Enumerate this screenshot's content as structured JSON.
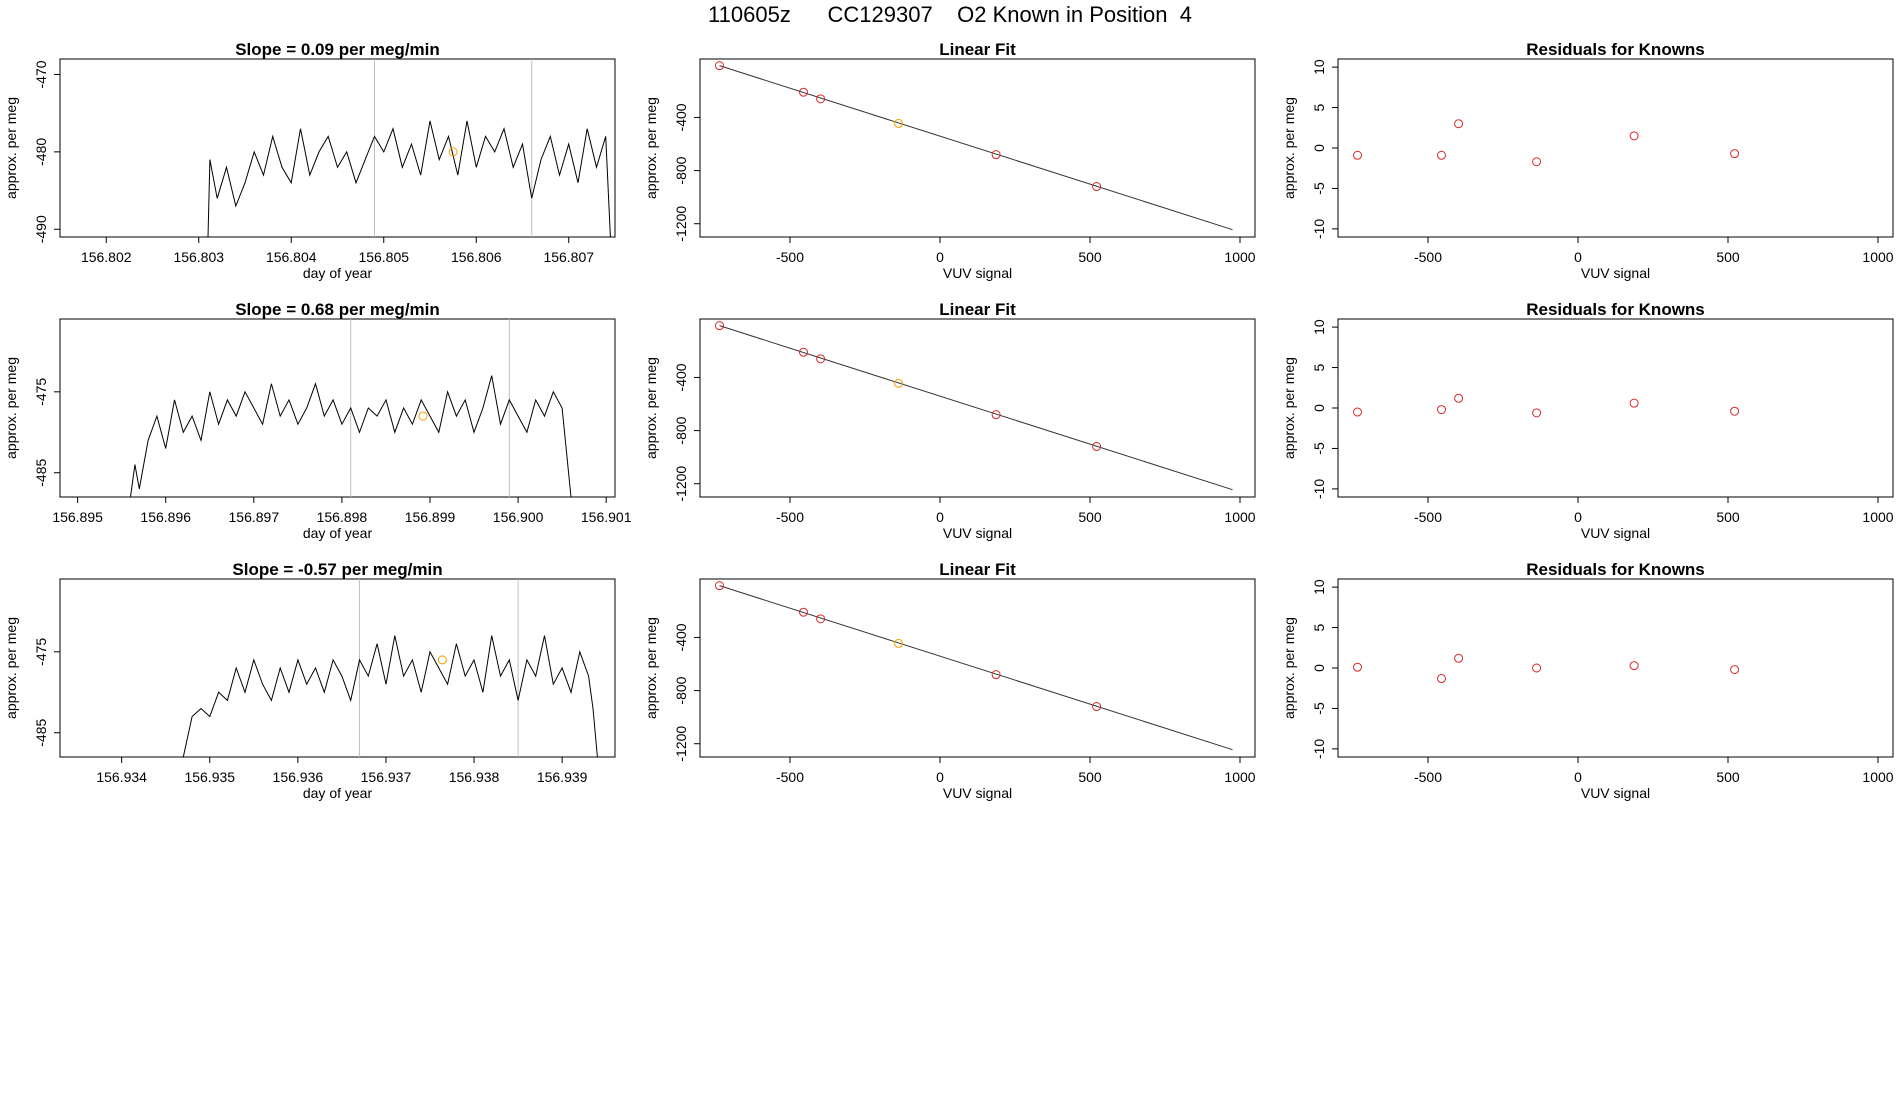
{
  "figure": {
    "title": "110605z      CC129307    O2 Known in Position  4"
  },
  "chart_data": [
    {
      "type": "line",
      "title": "Slope =  0.09  per meg/min",
      "xlabel": "day of year",
      "ylabel": "approx. per meg",
      "xlim": [
        156.8015,
        156.8075
      ],
      "ylim": [
        -491,
        -468
      ],
      "xticks": [
        156.802,
        156.803,
        156.804,
        156.805,
        156.806,
        156.807
      ],
      "xtick_labels": [
        "156.802",
        "156.803",
        "156.804",
        "156.805",
        "156.806",
        "156.807"
      ],
      "yticks": [
        -490,
        -480,
        -470
      ],
      "ytick_labels": [
        "-490",
        "-480",
        "-470"
      ],
      "vlines": [
        156.8049,
        156.8066
      ],
      "series": [
        {
          "x": [
            156.8015,
            156.8031,
            156.80312,
            156.8032,
            156.8033,
            156.8034,
            156.8035,
            156.8036,
            156.8037,
            156.8038,
            156.8039,
            156.804,
            156.8041,
            156.8042,
            156.8043,
            156.8044,
            156.8045,
            156.8046,
            156.8047,
            156.8048,
            156.8049,
            156.805,
            156.8051,
            156.8052,
            156.8053,
            156.8054,
            156.8055,
            156.8056,
            156.8057,
            156.8058,
            156.8059,
            156.806,
            156.8061,
            156.8062,
            156.8063,
            156.8064,
            156.8065,
            156.8066,
            156.8067,
            156.8068,
            156.8069,
            156.807,
            156.8071,
            156.8072,
            156.8073,
            156.8074,
            156.80745
          ],
          "y": [
            -491,
            -491,
            -481,
            -486,
            -482,
            -487,
            -484,
            -480,
            -483,
            -478,
            -482,
            -484,
            -477,
            -483,
            -480,
            -478,
            -482,
            -480,
            -484,
            -481,
            -478,
            -480,
            -477,
            -482,
            -479,
            -483,
            -476,
            -481,
            -478,
            -483,
            -476,
            -482,
            -478,
            -480,
            -477,
            -482,
            -479,
            -486,
            -481,
            -478,
            -483,
            -479,
            -484,
            -477,
            -482,
            -478,
            -491
          ]
        }
      ],
      "points": [
        {
          "x": 156.80575,
          "y": -480,
          "color": "#f5a000"
        }
      ]
    },
    {
      "type": "scatter",
      "title": "Linear Fit",
      "xlabel": "VUV signal",
      "ylabel": "approx. per meg",
      "xlim": [
        -800,
        1050
      ],
      "ylim": [
        -1300,
        40
      ],
      "xticks": [
        -500,
        0,
        500,
        1000
      ],
      "xtick_labels": [
        "-500",
        "0",
        "500",
        "1000"
      ],
      "yticks": [
        -1200,
        -800,
        -400
      ],
      "ytick_labels": [
        "-1200",
        "-800",
        "-400"
      ],
      "fit_line": {
        "x": [
          -735,
          975
        ],
        "y": [
          -10,
          -1245
        ]
      },
      "points": [
        {
          "x": -735,
          "y": -10,
          "color": "#d62728"
        },
        {
          "x": -455,
          "y": -210,
          "color": "#d62728"
        },
        {
          "x": -398,
          "y": -260,
          "color": "#d62728"
        },
        {
          "x": -138,
          "y": -445,
          "color": "#f5a000"
        },
        {
          "x": 187,
          "y": -680,
          "color": "#d62728"
        },
        {
          "x": 522,
          "y": -920,
          "color": "#d62728"
        }
      ]
    },
    {
      "type": "scatter",
      "title": "Residuals for Knowns",
      "xlabel": "VUV signal",
      "ylabel": "approx. per meg",
      "xlim": [
        -800,
        1050
      ],
      "ylim": [
        -11,
        11
      ],
      "xticks": [
        -500,
        0,
        500,
        1000
      ],
      "xtick_labels": [
        "-500",
        "0",
        "500",
        "1000"
      ],
      "yticks": [
        -10,
        -5,
        0,
        5,
        10
      ],
      "ytick_labels": [
        "-10",
        "-5",
        "0",
        "5",
        "10"
      ],
      "points": [
        {
          "x": -735,
          "y": -0.9,
          "color": "#d62728"
        },
        {
          "x": -455,
          "y": -0.9,
          "color": "#d62728"
        },
        {
          "x": -398,
          "y": 3.0,
          "color": "#d62728"
        },
        {
          "x": -138,
          "y": -1.7,
          "color": "#d62728"
        },
        {
          "x": 187,
          "y": 1.5,
          "color": "#d62728"
        },
        {
          "x": 522,
          "y": -0.7,
          "color": "#d62728"
        }
      ]
    },
    {
      "type": "line",
      "title": "Slope =  0.68  per meg/min",
      "xlabel": "day of year",
      "ylabel": "approx. per meg",
      "xlim": [
        156.8948,
        156.9011
      ],
      "ylim": [
        -488,
        -466
      ],
      "xticks": [
        156.895,
        156.896,
        156.897,
        156.898,
        156.899,
        156.9,
        156.901
      ],
      "xtick_labels": [
        "156.895",
        "156.896",
        "156.897",
        "156.898",
        "156.899",
        "156.900",
        "156.901"
      ],
      "yticks": [
        -485,
        -475
      ],
      "ytick_labels": [
        "-485",
        "-475"
      ],
      "vlines": [
        156.8981,
        156.8999
      ],
      "series": [
        {
          "x": [
            156.8955,
            156.8956,
            156.89565,
            156.8957,
            156.8958,
            156.8959,
            156.896,
            156.8961,
            156.8962,
            156.8963,
            156.8964,
            156.8965,
            156.8966,
            156.8967,
            156.8968,
            156.8969,
            156.897,
            156.8971,
            156.8972,
            156.8973,
            156.8974,
            156.8975,
            156.8976,
            156.8977,
            156.8978,
            156.8979,
            156.898,
            156.8981,
            156.8982,
            156.8983,
            156.8984,
            156.8985,
            156.8986,
            156.8987,
            156.8988,
            156.8989,
            156.899,
            156.8991,
            156.8992,
            156.8993,
            156.8994,
            156.8995,
            156.8996,
            156.8997,
            156.8998,
            156.8999,
            156.9,
            156.9001,
            156.9002,
            156.9003,
            156.9004,
            156.9005,
            156.9006,
            156.90062
          ],
          "y": [
            -488,
            -488,
            -484,
            -487,
            -481,
            -478,
            -482,
            -476,
            -480,
            -478,
            -481,
            -475,
            -479,
            -476,
            -478,
            -475,
            -477,
            -479,
            -474,
            -478,
            -476,
            -479,
            -477,
            -474,
            -478,
            -476,
            -479,
            -477,
            -480,
            -477,
            -478,
            -476,
            -480,
            -477,
            -479,
            -476,
            -478,
            -480,
            -475,
            -478,
            -476,
            -480,
            -477,
            -473,
            -479,
            -476,
            -478,
            -480,
            -476,
            -478,
            -475,
            -477,
            -488,
            -488
          ]
        }
      ],
      "points": [
        {
          "x": 156.89892,
          "y": -478,
          "color": "#f5a000"
        }
      ]
    },
    {
      "type": "scatter",
      "title": "Linear Fit",
      "xlabel": "VUV signal",
      "ylabel": "approx. per meg",
      "xlim": [
        -800,
        1050
      ],
      "ylim": [
        -1300,
        40
      ],
      "xticks": [
        -500,
        0,
        500,
        1000
      ],
      "xtick_labels": [
        "-500",
        "0",
        "500",
        "1000"
      ],
      "yticks": [
        -1200,
        -800,
        -400
      ],
      "ytick_labels": [
        "-1200",
        "-800",
        "-400"
      ],
      "fit_line": {
        "x": [
          -735,
          975
        ],
        "y": [
          -10,
          -1245
        ]
      },
      "points": [
        {
          "x": -735,
          "y": -10,
          "color": "#d62728"
        },
        {
          "x": -455,
          "y": -210,
          "color": "#d62728"
        },
        {
          "x": -398,
          "y": -260,
          "color": "#d62728"
        },
        {
          "x": -138,
          "y": -445,
          "color": "#f5a000"
        },
        {
          "x": 187,
          "y": -680,
          "color": "#d62728"
        },
        {
          "x": 522,
          "y": -920,
          "color": "#d62728"
        }
      ]
    },
    {
      "type": "scatter",
      "title": "Residuals for Knowns",
      "xlabel": "VUV signal",
      "ylabel": "approx. per meg",
      "xlim": [
        -800,
        1050
      ],
      "ylim": [
        -11,
        11
      ],
      "xticks": [
        -500,
        0,
        500,
        1000
      ],
      "xtick_labels": [
        "-500",
        "0",
        "500",
        "1000"
      ],
      "yticks": [
        -10,
        -5,
        0,
        5,
        10
      ],
      "ytick_labels": [
        "-10",
        "-5",
        "0",
        "5",
        "10"
      ],
      "points": [
        {
          "x": -735,
          "y": -0.5,
          "color": "#d62728"
        },
        {
          "x": -455,
          "y": -0.2,
          "color": "#d62728"
        },
        {
          "x": -398,
          "y": 1.2,
          "color": "#d62728"
        },
        {
          "x": -138,
          "y": -0.6,
          "color": "#d62728"
        },
        {
          "x": 187,
          "y": 0.6,
          "color": "#d62728"
        },
        {
          "x": 522,
          "y": -0.4,
          "color": "#d62728"
        }
      ]
    },
    {
      "type": "line",
      "title": "Slope =  -0.57  per meg/min",
      "xlabel": "day of year",
      "ylabel": "approx. per meg",
      "xlim": [
        156.9333,
        156.9396
      ],
      "ylim": [
        -488,
        -466
      ],
      "xticks": [
        156.934,
        156.935,
        156.936,
        156.937,
        156.938,
        156.939
      ],
      "xtick_labels": [
        "156.934",
        "156.935",
        "156.936",
        "156.937",
        "156.938",
        "156.939"
      ],
      "yticks": [
        -485,
        -475
      ],
      "ytick_labels": [
        "-485",
        "-475"
      ],
      "vlines": [
        156.9367,
        156.9385
      ],
      "series": [
        {
          "x": [
            156.9333,
            156.9347,
            156.9348,
            156.9349,
            156.935,
            156.9351,
            156.9352,
            156.9353,
            156.9354,
            156.9355,
            156.9356,
            156.9357,
            156.9358,
            156.9359,
            156.936,
            156.9361,
            156.9362,
            156.9363,
            156.9364,
            156.9365,
            156.9366,
            156.9367,
            156.9368,
            156.9369,
            156.937,
            156.9371,
            156.9372,
            156.9373,
            156.9374,
            156.9375,
            156.9376,
            156.9377,
            156.9378,
            156.9379,
            156.938,
            156.9381,
            156.9382,
            156.9383,
            156.9384,
            156.9385,
            156.9386,
            156.9387,
            156.9388,
            156.9389,
            156.939,
            156.9391,
            156.9392,
            156.9393,
            156.93935,
            156.9394
          ],
          "y": [
            -488,
            -488,
            -483,
            -482,
            -483,
            -480,
            -481,
            -477,
            -480,
            -476,
            -479,
            -481,
            -477,
            -480,
            -476,
            -479,
            -477,
            -480,
            -476,
            -478,
            -481,
            -476,
            -478,
            -474,
            -479,
            -473,
            -478,
            -476,
            -480,
            -475,
            -477,
            -479,
            -474,
            -478,
            -476,
            -480,
            -473,
            -478,
            -476,
            -481,
            -476,
            -478,
            -473,
            -479,
            -477,
            -480,
            -475,
            -478,
            -482,
            -488
          ]
        }
      ],
      "points": [
        {
          "x": 156.93764,
          "y": -476,
          "color": "#f5a000"
        }
      ]
    },
    {
      "type": "scatter",
      "title": "Linear Fit",
      "xlabel": "VUV signal",
      "ylabel": "approx. per meg",
      "xlim": [
        -800,
        1050
      ],
      "ylim": [
        -1300,
        40
      ],
      "xticks": [
        -500,
        0,
        500,
        1000
      ],
      "xtick_labels": [
        "-500",
        "0",
        "500",
        "1000"
      ],
      "yticks": [
        -1200,
        -800,
        -400
      ],
      "ytick_labels": [
        "-1200",
        "-800",
        "-400"
      ],
      "fit_line": {
        "x": [
          -735,
          975
        ],
        "y": [
          -10,
          -1245
        ]
      },
      "points": [
        {
          "x": -735,
          "y": -10,
          "color": "#d62728"
        },
        {
          "x": -455,
          "y": -210,
          "color": "#d62728"
        },
        {
          "x": -398,
          "y": -260,
          "color": "#d62728"
        },
        {
          "x": -138,
          "y": -445,
          "color": "#f5a000"
        },
        {
          "x": 187,
          "y": -680,
          "color": "#d62728"
        },
        {
          "x": 522,
          "y": -920,
          "color": "#d62728"
        }
      ]
    },
    {
      "type": "scatter",
      "title": "Residuals for Knowns",
      "xlabel": "VUV signal",
      "ylabel": "approx. per meg",
      "xlim": [
        -800,
        1050
      ],
      "ylim": [
        -11,
        11
      ],
      "xticks": [
        -500,
        0,
        500,
        1000
      ],
      "xtick_labels": [
        "-500",
        "0",
        "500",
        "1000"
      ],
      "yticks": [
        -10,
        -5,
        0,
        5,
        10
      ],
      "ytick_labels": [
        "-10",
        "-5",
        "0",
        "5",
        "10"
      ],
      "points": [
        {
          "x": -735,
          "y": 0.1,
          "color": "#d62728"
        },
        {
          "x": -455,
          "y": -1.3,
          "color": "#d62728"
        },
        {
          "x": -398,
          "y": 1.2,
          "color": "#d62728"
        },
        {
          "x": -138,
          "y": 0.0,
          "color": "#d62728"
        },
        {
          "x": 187,
          "y": 0.3,
          "color": "#d62728"
        },
        {
          "x": 522,
          "y": -0.2,
          "color": "#d62728"
        }
      ]
    }
  ]
}
